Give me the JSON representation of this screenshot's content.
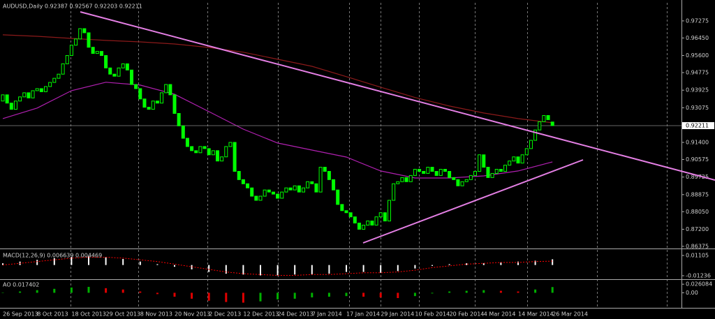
{
  "chart_data": [
    {
      "type": "candlestick",
      "title": "AUDUSD,Daily  0.92387 0.92567 0.92203 0.92211",
      "color": "#00ff00",
      "categories": [
        "26 Sep 2013",
        null,
        null,
        null,
        null,
        null,
        null,
        null,
        "8 Oct 2013",
        null,
        null,
        null,
        null,
        null,
        null,
        null,
        "18 Oct 2013",
        null,
        null,
        null,
        null,
        null,
        null,
        null,
        "29 Oct 2013",
        null,
        null,
        null,
        null,
        null,
        null,
        null,
        "8 Nov 2013",
        null,
        null,
        null,
        null,
        null,
        null,
        null,
        "20 Nov 2013",
        null,
        null,
        null,
        null,
        null,
        null,
        null,
        "2 Dec 2013",
        null,
        null,
        null,
        null,
        null,
        null,
        null,
        "12 Dec 2013",
        null,
        null,
        null,
        null,
        null,
        null,
        null,
        "24 Dec 2013",
        null,
        null,
        null,
        null,
        null,
        null,
        null,
        "7 Jan 2014",
        null,
        null,
        null,
        null,
        null,
        null,
        null,
        "17 Jan 2014",
        null,
        null,
        null,
        null,
        null,
        null,
        null,
        "29 Jan 2014",
        null,
        null,
        null,
        null,
        null,
        null,
        null,
        "10 Feb 2014",
        null,
        null,
        null,
        null,
        null,
        null,
        null,
        "20 Feb 2014",
        null,
        null,
        null,
        null,
        null,
        null,
        null,
        "4 Mar 2014",
        null,
        null,
        null,
        null,
        null,
        null,
        null,
        "14 Mar 2014",
        null,
        null,
        null,
        null,
        null,
        null,
        null,
        "26 Mar 2014"
      ],
      "open": [
        0.934,
        0.937,
        0.933,
        0.93,
        0.934,
        0.936,
        0.938,
        0.9355,
        0.939,
        0.94,
        0.9385,
        0.941,
        0.943,
        0.945,
        0.947,
        0.952,
        0.956,
        0.961,
        0.964,
        0.969,
        0.967,
        0.96,
        0.957,
        0.958,
        0.956,
        0.95,
        0.947,
        0.946,
        0.95,
        0.952,
        0.949,
        0.942,
        0.94,
        0.935,
        0.931,
        0.93,
        0.934,
        0.933,
        0.938,
        0.942,
        0.937,
        0.928,
        0.922,
        0.916,
        0.912,
        0.91,
        0.909,
        0.912,
        0.911,
        0.908,
        0.91,
        0.905,
        0.907,
        0.912,
        0.914,
        0.9,
        0.896,
        0.894,
        0.892,
        0.888,
        0.886,
        0.888,
        0.891,
        0.89,
        0.889,
        0.887,
        0.89,
        0.892,
        0.891,
        0.893,
        0.89,
        0.892,
        0.895,
        0.894,
        0.89,
        0.902,
        0.9,
        0.896,
        0.891,
        0.884,
        0.881,
        0.88,
        0.878,
        0.875,
        0.872,
        0.874,
        0.876,
        0.874,
        0.878,
        0.88,
        0.876,
        0.886,
        0.894,
        0.895,
        0.897,
        0.895,
        0.898,
        0.901,
        0.9,
        0.899,
        0.902,
        0.9,
        0.898,
        0.901,
        0.9,
        0.897,
        0.896,
        0.893,
        0.895,
        0.896,
        0.898,
        0.9,
        0.908,
        0.902,
        0.897,
        0.899,
        0.901,
        0.9,
        0.903,
        0.905,
        0.907,
        0.904,
        0.908,
        0.911,
        0.915,
        0.92,
        0.924,
        0.927,
        0.92387
      ],
      "close": [
        0.937,
        0.933,
        0.93,
        0.934,
        0.936,
        0.938,
        0.9355,
        0.939,
        0.94,
        0.9385,
        0.941,
        0.943,
        0.945,
        0.947,
        0.952,
        0.956,
        0.961,
        0.964,
        0.969,
        0.967,
        0.96,
        0.957,
        0.958,
        0.956,
        0.95,
        0.947,
        0.946,
        0.95,
        0.952,
        0.949,
        0.942,
        0.94,
        0.935,
        0.931,
        0.93,
        0.934,
        0.933,
        0.938,
        0.942,
        0.937,
        0.928,
        0.922,
        0.916,
        0.912,
        0.91,
        0.909,
        0.912,
        0.911,
        0.908,
        0.91,
        0.905,
        0.907,
        0.912,
        0.914,
        0.9,
        0.896,
        0.894,
        0.892,
        0.888,
        0.886,
        0.888,
        0.891,
        0.89,
        0.889,
        0.887,
        0.89,
        0.892,
        0.891,
        0.893,
        0.89,
        0.892,
        0.895,
        0.894,
        0.89,
        0.902,
        0.9,
        0.896,
        0.891,
        0.884,
        0.881,
        0.88,
        0.878,
        0.875,
        0.872,
        0.874,
        0.876,
        0.874,
        0.878,
        0.88,
        0.876,
        0.886,
        0.894,
        0.895,
        0.897,
        0.895,
        0.898,
        0.901,
        0.9,
        0.899,
        0.902,
        0.9,
        0.898,
        0.901,
        0.9,
        0.897,
        0.896,
        0.893,
        0.895,
        0.896,
        0.898,
        0.9,
        0.908,
        0.902,
        0.897,
        0.899,
        0.901,
        0.9,
        0.903,
        0.905,
        0.907,
        0.904,
        0.908,
        0.911,
        0.915,
        0.92,
        0.924,
        0.927,
        0.925,
        0.92211
      ],
      "lines": [
        {
          "color": "#8b1a1a",
          "values": [
            0.966,
            0.9653,
            0.9643,
            0.9633,
            0.9626,
            0.9616,
            0.9599,
            0.9576,
            0.9542,
            0.9508,
            0.9458,
            0.9407,
            0.9357,
            0.9316,
            0.9282,
            0.9255,
            0.9235
          ]
        },
        {
          "color": "#b020b0",
          "values": [
            0.9255,
            0.9306,
            0.939,
            0.9431,
            0.9417,
            0.9373,
            0.9289,
            0.9204,
            0.9137,
            0.9103,
            0.9069,
            0.9002,
            0.8968,
            0.8968,
            0.8978,
            0.9002,
            0.9046
          ]
        }
      ],
      "current_price": 0.92211,
      "ylim": [
        0.8627,
        0.9815
      ],
      "yticks": [
        0.97275,
        {
          "value": 0.9645,
          "label": "0.96450"
        },
        {
          "value": 0.956,
          "label": "0.95600"
        },
        0.94775,
        0.93925,
        0.93075,
        {
          "value": 0.914,
          "label": "0.91400"
        },
        0.90575,
        0.89725,
        0.88875,
        {
          "value": 0.8805,
          "label": "0.88050"
        },
        {
          "value": 0.872,
          "label": "0.87200"
        },
        0.86375
      ]
    },
    {
      "type": "macd",
      "label": "MACD(12,26,9) 0.006639 0.004469",
      "color": "#ffffff",
      "signal_color": "#ff0000",
      "values": [
        0.002,
        0.004,
        0.006,
        0.008,
        0.009,
        0.01,
        0.009,
        0.007,
        0.004,
        0.001,
        -0.002,
        -0.005,
        -0.008,
        -0.01,
        -0.011,
        -0.012,
        -0.012,
        -0.011,
        -0.011,
        -0.01,
        -0.008,
        -0.008,
        -0.009,
        -0.007,
        -0.004,
        -0.001,
        0.001,
        0.002,
        0.002,
        0.003,
        0.004,
        0.005,
        0.006639
      ],
      "signal": [
        0.0,
        0.002,
        0.004,
        0.006,
        0.008,
        0.009,
        0.009,
        0.008,
        0.006,
        0.004,
        0.001,
        -0.002,
        -0.005,
        -0.008,
        -0.01,
        -0.011,
        -0.012,
        -0.012,
        -0.011,
        -0.011,
        -0.01,
        -0.009,
        -0.009,
        -0.008,
        -0.006,
        -0.003,
        -0.001,
        0.001,
        0.002,
        0.003,
        0.003,
        0.004,
        0.004469
      ],
      "ylim": [
        -0.0156,
        0.0175
      ],
      "yticks": [
        0.01105,
        -0.01236
      ]
    },
    {
      "type": "ao",
      "label": "AO 0.017402",
      "up_color": "#00b000",
      "down_color": "#e00000",
      "values": [
        0.0,
        0.004,
        0.008,
        0.012,
        0.016,
        0.018,
        0.014,
        0.01,
        0.004,
        -0.004,
        -0.012,
        -0.018,
        -0.024,
        -0.028,
        -0.03,
        -0.026,
        -0.02,
        -0.018,
        -0.014,
        -0.012,
        -0.01,
        -0.012,
        -0.014,
        -0.016,
        -0.01,
        -0.002,
        0.004,
        0.006,
        0.008,
        0.006,
        0.004,
        0.01,
        0.017402
      ],
      "ylim": [
        -0.0457,
        0.037
      ],
      "yticks": [
        0.026084,
        {
          "value": 0,
          "label": "0.00"
        }
      ]
    }
  ]
}
